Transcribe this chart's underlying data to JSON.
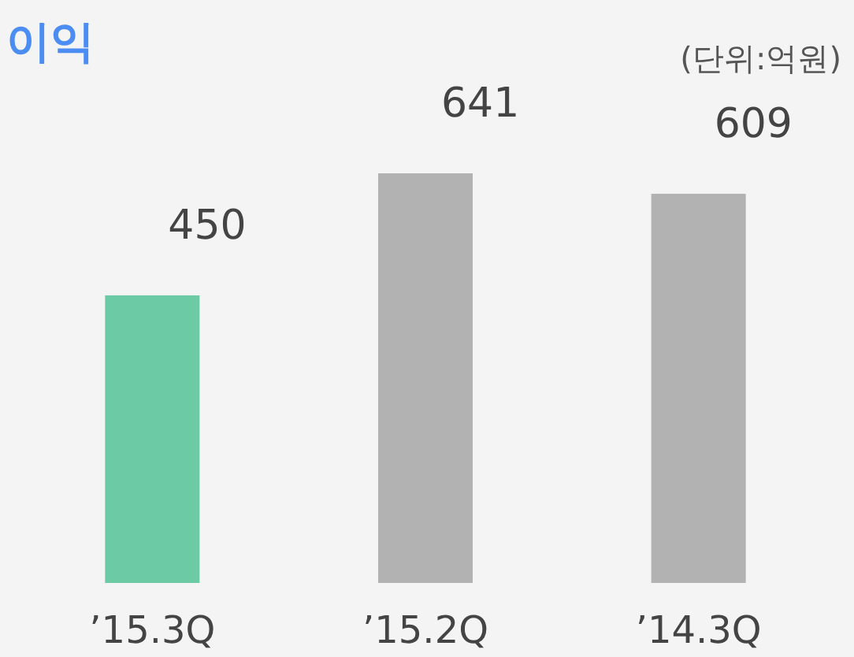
{
  "chart_data": {
    "type": "bar",
    "title": "이익",
    "annotations": [
      "(단위:억원)"
    ],
    "categories": [
      "’15.3Q",
      "’15.2Q",
      "’14.3Q"
    ],
    "values": [
      450,
      641,
      609
    ],
    "colors": [
      "#6ccba5",
      "#b2b2b2",
      "#b2b2b2"
    ],
    "data_labels": true
  }
}
